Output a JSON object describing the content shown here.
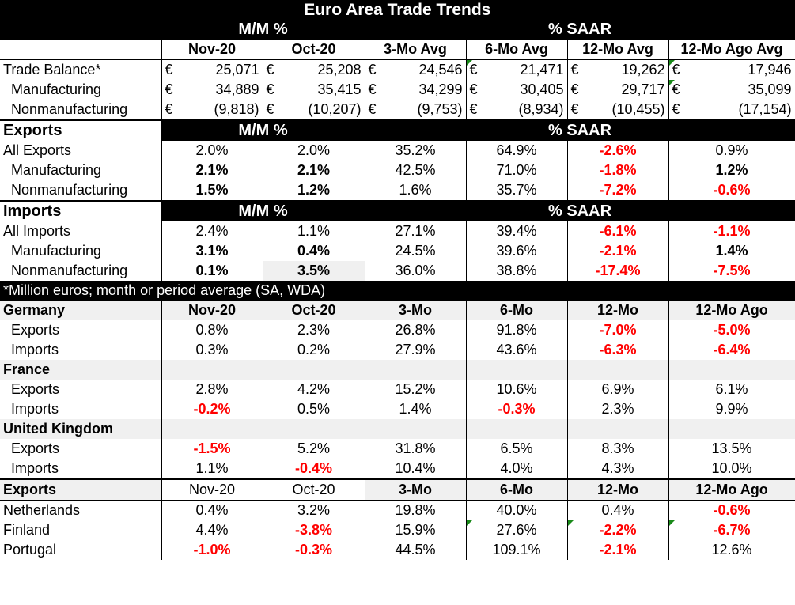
{
  "title": "Euro Area Trade Trends",
  "mm_label": "M/M %",
  "saar_label": "% SAAR",
  "columns": [
    "Nov-20",
    "Oct-20",
    "3-Mo Avg",
    "6-Mo Avg",
    "12-Mo Avg",
    "12-Mo Ago Avg"
  ],
  "currency_symbol": "€",
  "balance_rows": [
    {
      "label": "Trade Balance*",
      "values": [
        "25,071",
        "25,208",
        "24,546",
        "21,471",
        "19,262",
        "17,946"
      ]
    },
    {
      "label": "Manufacturing",
      "values": [
        "34,889",
        "35,415",
        "34,299",
        "30,405",
        "29,717",
        "35,099"
      ]
    },
    {
      "label": "Nonmanufacturing",
      "values": [
        "(9,818)",
        "(10,207)",
        "(9,753)",
        "(8,934)",
        "(10,455)",
        "(17,154)"
      ]
    }
  ],
  "exports_section": {
    "label": "Exports",
    "rows": [
      {
        "label": "All Exports",
        "values": [
          "2.0%",
          "2.0%",
          "35.2%",
          "64.9%",
          "-2.6%",
          "0.9%"
        ]
      },
      {
        "label": "Manufacturing",
        "values": [
          "2.1%",
          "2.1%",
          "42.5%",
          "71.0%",
          "-1.8%",
          "1.2%"
        ]
      },
      {
        "label": "Nonmanufacturing",
        "values": [
          "1.5%",
          "1.2%",
          "1.6%",
          "35.7%",
          "-7.2%",
          "-0.6%"
        ]
      }
    ]
  },
  "imports_section": {
    "label": "Imports",
    "rows": [
      {
        "label": "All Imports",
        "values": [
          "2.4%",
          "1.1%",
          "27.1%",
          "39.4%",
          "-6.1%",
          "-1.1%"
        ]
      },
      {
        "label": "Manufacturing",
        "values": [
          "3.1%",
          "0.4%",
          "24.5%",
          "39.6%",
          "-2.1%",
          "1.4%"
        ]
      },
      {
        "label": "Nonmanufacturing",
        "values": [
          "0.1%",
          "3.5%",
          "36.0%",
          "38.8%",
          "-17.4%",
          "-7.5%"
        ]
      }
    ]
  },
  "footnote": "*Million euros; month or period average (SA, WDA)",
  "country_columns": [
    "Nov-20",
    "Oct-20",
    "3-Mo",
    "6-Mo",
    "12-Mo",
    "12-Mo Ago"
  ],
  "countries": [
    {
      "name": "Germany",
      "exports": [
        "0.8%",
        "2.3%",
        "26.8%",
        "91.8%",
        "-7.0%",
        "-5.0%"
      ],
      "imports": [
        "0.3%",
        "0.2%",
        "27.9%",
        "43.6%",
        "-6.3%",
        "-6.4%"
      ]
    },
    {
      "name": "France",
      "exports": [
        "2.8%",
        "4.2%",
        "15.2%",
        "10.6%",
        "6.9%",
        "6.1%"
      ],
      "imports": [
        "-0.2%",
        "0.5%",
        "1.4%",
        "-0.3%",
        "2.3%",
        "9.9%"
      ]
    },
    {
      "name": "United Kingdom",
      "exports": [
        "-1.5%",
        "5.2%",
        "31.8%",
        "6.5%",
        "8.3%",
        "13.5%"
      ],
      "imports": [
        "1.1%",
        "-0.4%",
        "10.4%",
        "4.0%",
        "4.3%",
        "10.0%"
      ]
    }
  ],
  "sub_labels": {
    "exports": "Exports",
    "imports": "Imports"
  },
  "exports_by_country": {
    "label": "Exports",
    "columns": [
      "Nov-20",
      "Oct-20",
      "3-Mo",
      "6-Mo",
      "12-Mo",
      "12-Mo Ago"
    ],
    "rows": [
      {
        "label": "Netherlands",
        "values": [
          "0.4%",
          "3.2%",
          "19.8%",
          "40.0%",
          "0.4%",
          "-0.6%"
        ]
      },
      {
        "label": "Finland",
        "values": [
          "4.4%",
          "-3.8%",
          "15.9%",
          "27.6%",
          "-2.2%",
          "-6.7%"
        ]
      },
      {
        "label": "Portugal",
        "values": [
          "-1.0%",
          "-0.3%",
          "44.5%",
          "109.1%",
          "-2.1%",
          "12.6%"
        ]
      }
    ]
  },
  "colors": {
    "negative": "#ff0000",
    "band": "#000000",
    "shade": "#f0f0f0",
    "comment_marker": "#1a8a1a"
  }
}
